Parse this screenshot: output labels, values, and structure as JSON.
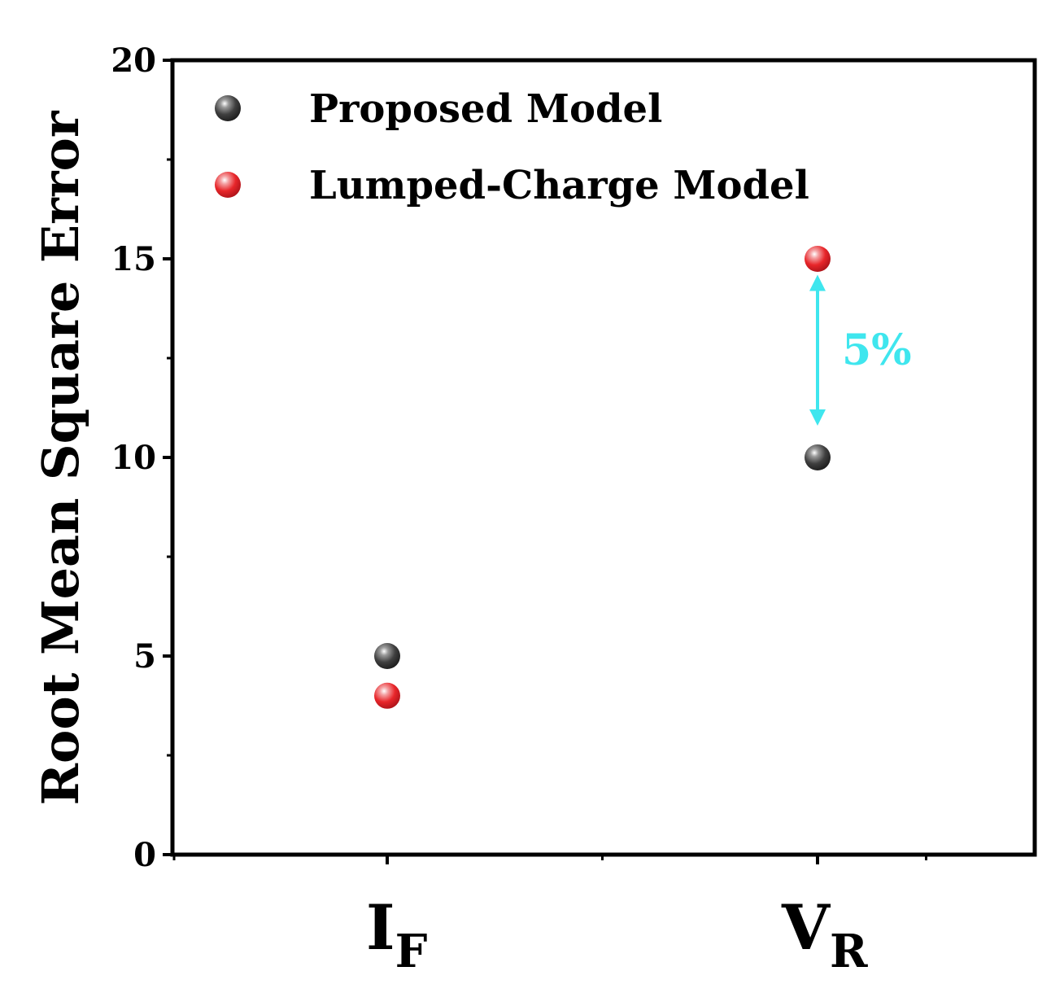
{
  "chart_data": {
    "type": "scatter",
    "ylabel": "Root Mean Square Error",
    "ylim": [
      0,
      20
    ],
    "yticks": [
      "0",
      "5",
      "10",
      "15",
      "20"
    ],
    "categories": [
      {
        "main": "I",
        "sub": "F"
      },
      {
        "main": "V",
        "sub": "R"
      }
    ],
    "series": [
      {
        "name": "Proposed Model",
        "color": "#404040",
        "values": [
          5,
          10
        ]
      },
      {
        "name": "Lumped-Charge Model",
        "color": "#e8262a",
        "values": [
          4,
          15
        ]
      }
    ],
    "annotations": [
      {
        "text": "5%",
        "category_index": 1,
        "y_from": 14.6,
        "y_to": 10.8,
        "color": "#3fe6ee"
      }
    ],
    "legend_position": "top-left",
    "grid": false
  }
}
